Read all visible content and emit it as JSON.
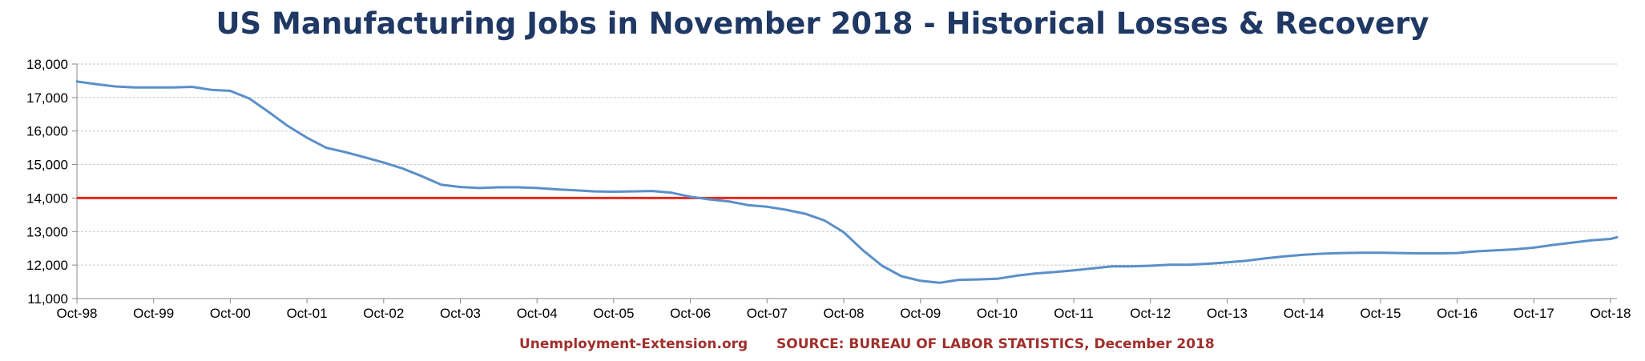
{
  "colors": {
    "series": "#5b8fc9",
    "reference": "#e8281e",
    "title": "#1f3864",
    "footer": "#a0302c"
  },
  "footer": {
    "site": "Unemployment-Extension.org",
    "source": "SOURCE: BUREAU OF LABOR STATISTICS, December 2018"
  },
  "chart_data": {
    "type": "line",
    "title": "US Manufacturing Jobs in November 2018 - Historical Losses & Recovery",
    "xlabel": "",
    "ylabel": "",
    "ylim": [
      11000,
      18000
    ],
    "yticks": [
      11000,
      12000,
      13000,
      14000,
      15000,
      16000,
      17000,
      18000
    ],
    "ytick_labels": [
      "11,000",
      "12,000",
      "13,000",
      "14,000",
      "15,000",
      "16,000",
      "17,000",
      "18,000"
    ],
    "xlim": [
      "1998-10",
      "2018-11"
    ],
    "xticks": [
      "1998-10",
      "1999-10",
      "2000-10",
      "2001-10",
      "2002-10",
      "2003-10",
      "2004-10",
      "2005-10",
      "2006-10",
      "2007-10",
      "2008-10",
      "2009-10",
      "2010-10",
      "2011-10",
      "2012-10",
      "2013-10",
      "2014-10",
      "2015-10",
      "2016-10",
      "2017-10",
      "2018-10"
    ],
    "xtick_labels": [
      "Oct-98",
      "Oct-99",
      "Oct-00",
      "Oct-01",
      "Oct-02",
      "Oct-03",
      "Oct-04",
      "Oct-05",
      "Oct-06",
      "Oct-07",
      "Oct-08",
      "Oct-09",
      "Oct-10",
      "Oct-11",
      "Oct-12",
      "Oct-13",
      "Oct-14",
      "Oct-15",
      "Oct-16",
      "Oct-17",
      "Oct-18"
    ],
    "grid": "horizontal",
    "reference_line": {
      "y": 14000
    },
    "series": [
      {
        "points": [
          [
            "1998-10",
            17480
          ],
          [
            "1999-01",
            17400
          ],
          [
            "1999-04",
            17330
          ],
          [
            "1999-07",
            17300
          ],
          [
            "1999-10",
            17300
          ],
          [
            "2000-01",
            17300
          ],
          [
            "2000-04",
            17320
          ],
          [
            "2000-07",
            17230
          ],
          [
            "2000-10",
            17200
          ],
          [
            "2001-01",
            16970
          ],
          [
            "2001-04",
            16570
          ],
          [
            "2001-07",
            16150
          ],
          [
            "2001-10",
            15800
          ],
          [
            "2002-01",
            15500
          ],
          [
            "2002-04",
            15370
          ],
          [
            "2002-07",
            15220
          ],
          [
            "2002-10",
            15060
          ],
          [
            "2003-01",
            14880
          ],
          [
            "2003-04",
            14650
          ],
          [
            "2003-07",
            14400
          ],
          [
            "2003-10",
            14330
          ],
          [
            "2004-01",
            14300
          ],
          [
            "2004-04",
            14320
          ],
          [
            "2004-07",
            14320
          ],
          [
            "2004-10",
            14300
          ],
          [
            "2005-01",
            14260
          ],
          [
            "2005-04",
            14230
          ],
          [
            "2005-07",
            14200
          ],
          [
            "2005-10",
            14190
          ],
          [
            "2006-01",
            14200
          ],
          [
            "2006-04",
            14210
          ],
          [
            "2006-07",
            14160
          ],
          [
            "2006-10",
            14040
          ],
          [
            "2007-01",
            13960
          ],
          [
            "2007-04",
            13900
          ],
          [
            "2007-07",
            13790
          ],
          [
            "2007-10",
            13740
          ],
          [
            "2008-01",
            13650
          ],
          [
            "2008-04",
            13530
          ],
          [
            "2008-07",
            13330
          ],
          [
            "2008-10",
            12980
          ],
          [
            "2009-01",
            12440
          ],
          [
            "2009-04",
            11980
          ],
          [
            "2009-07",
            11670
          ],
          [
            "2009-10",
            11530
          ],
          [
            "2010-01",
            11470
          ],
          [
            "2010-04",
            11560
          ],
          [
            "2010-07",
            11570
          ],
          [
            "2010-10",
            11590
          ],
          [
            "2011-01",
            11680
          ],
          [
            "2011-04",
            11750
          ],
          [
            "2011-07",
            11790
          ],
          [
            "2011-10",
            11840
          ],
          [
            "2012-01",
            11900
          ],
          [
            "2012-04",
            11960
          ],
          [
            "2012-07",
            11960
          ],
          [
            "2012-10",
            11980
          ],
          [
            "2013-01",
            12010
          ],
          [
            "2013-04",
            12010
          ],
          [
            "2013-07",
            12040
          ],
          [
            "2013-10",
            12080
          ],
          [
            "2014-01",
            12130
          ],
          [
            "2014-04",
            12200
          ],
          [
            "2014-07",
            12260
          ],
          [
            "2014-10",
            12310
          ],
          [
            "2015-01",
            12340
          ],
          [
            "2015-04",
            12360
          ],
          [
            "2015-07",
            12370
          ],
          [
            "2015-10",
            12370
          ],
          [
            "2016-01",
            12360
          ],
          [
            "2016-04",
            12350
          ],
          [
            "2016-07",
            12350
          ],
          [
            "2016-10",
            12360
          ],
          [
            "2017-01",
            12410
          ],
          [
            "2017-04",
            12440
          ],
          [
            "2017-07",
            12470
          ],
          [
            "2017-10",
            12520
          ],
          [
            "2018-01",
            12600
          ],
          [
            "2018-04",
            12670
          ],
          [
            "2018-07",
            12740
          ],
          [
            "2018-10",
            12780
          ],
          [
            "2018-11",
            12830
          ]
        ]
      }
    ]
  }
}
